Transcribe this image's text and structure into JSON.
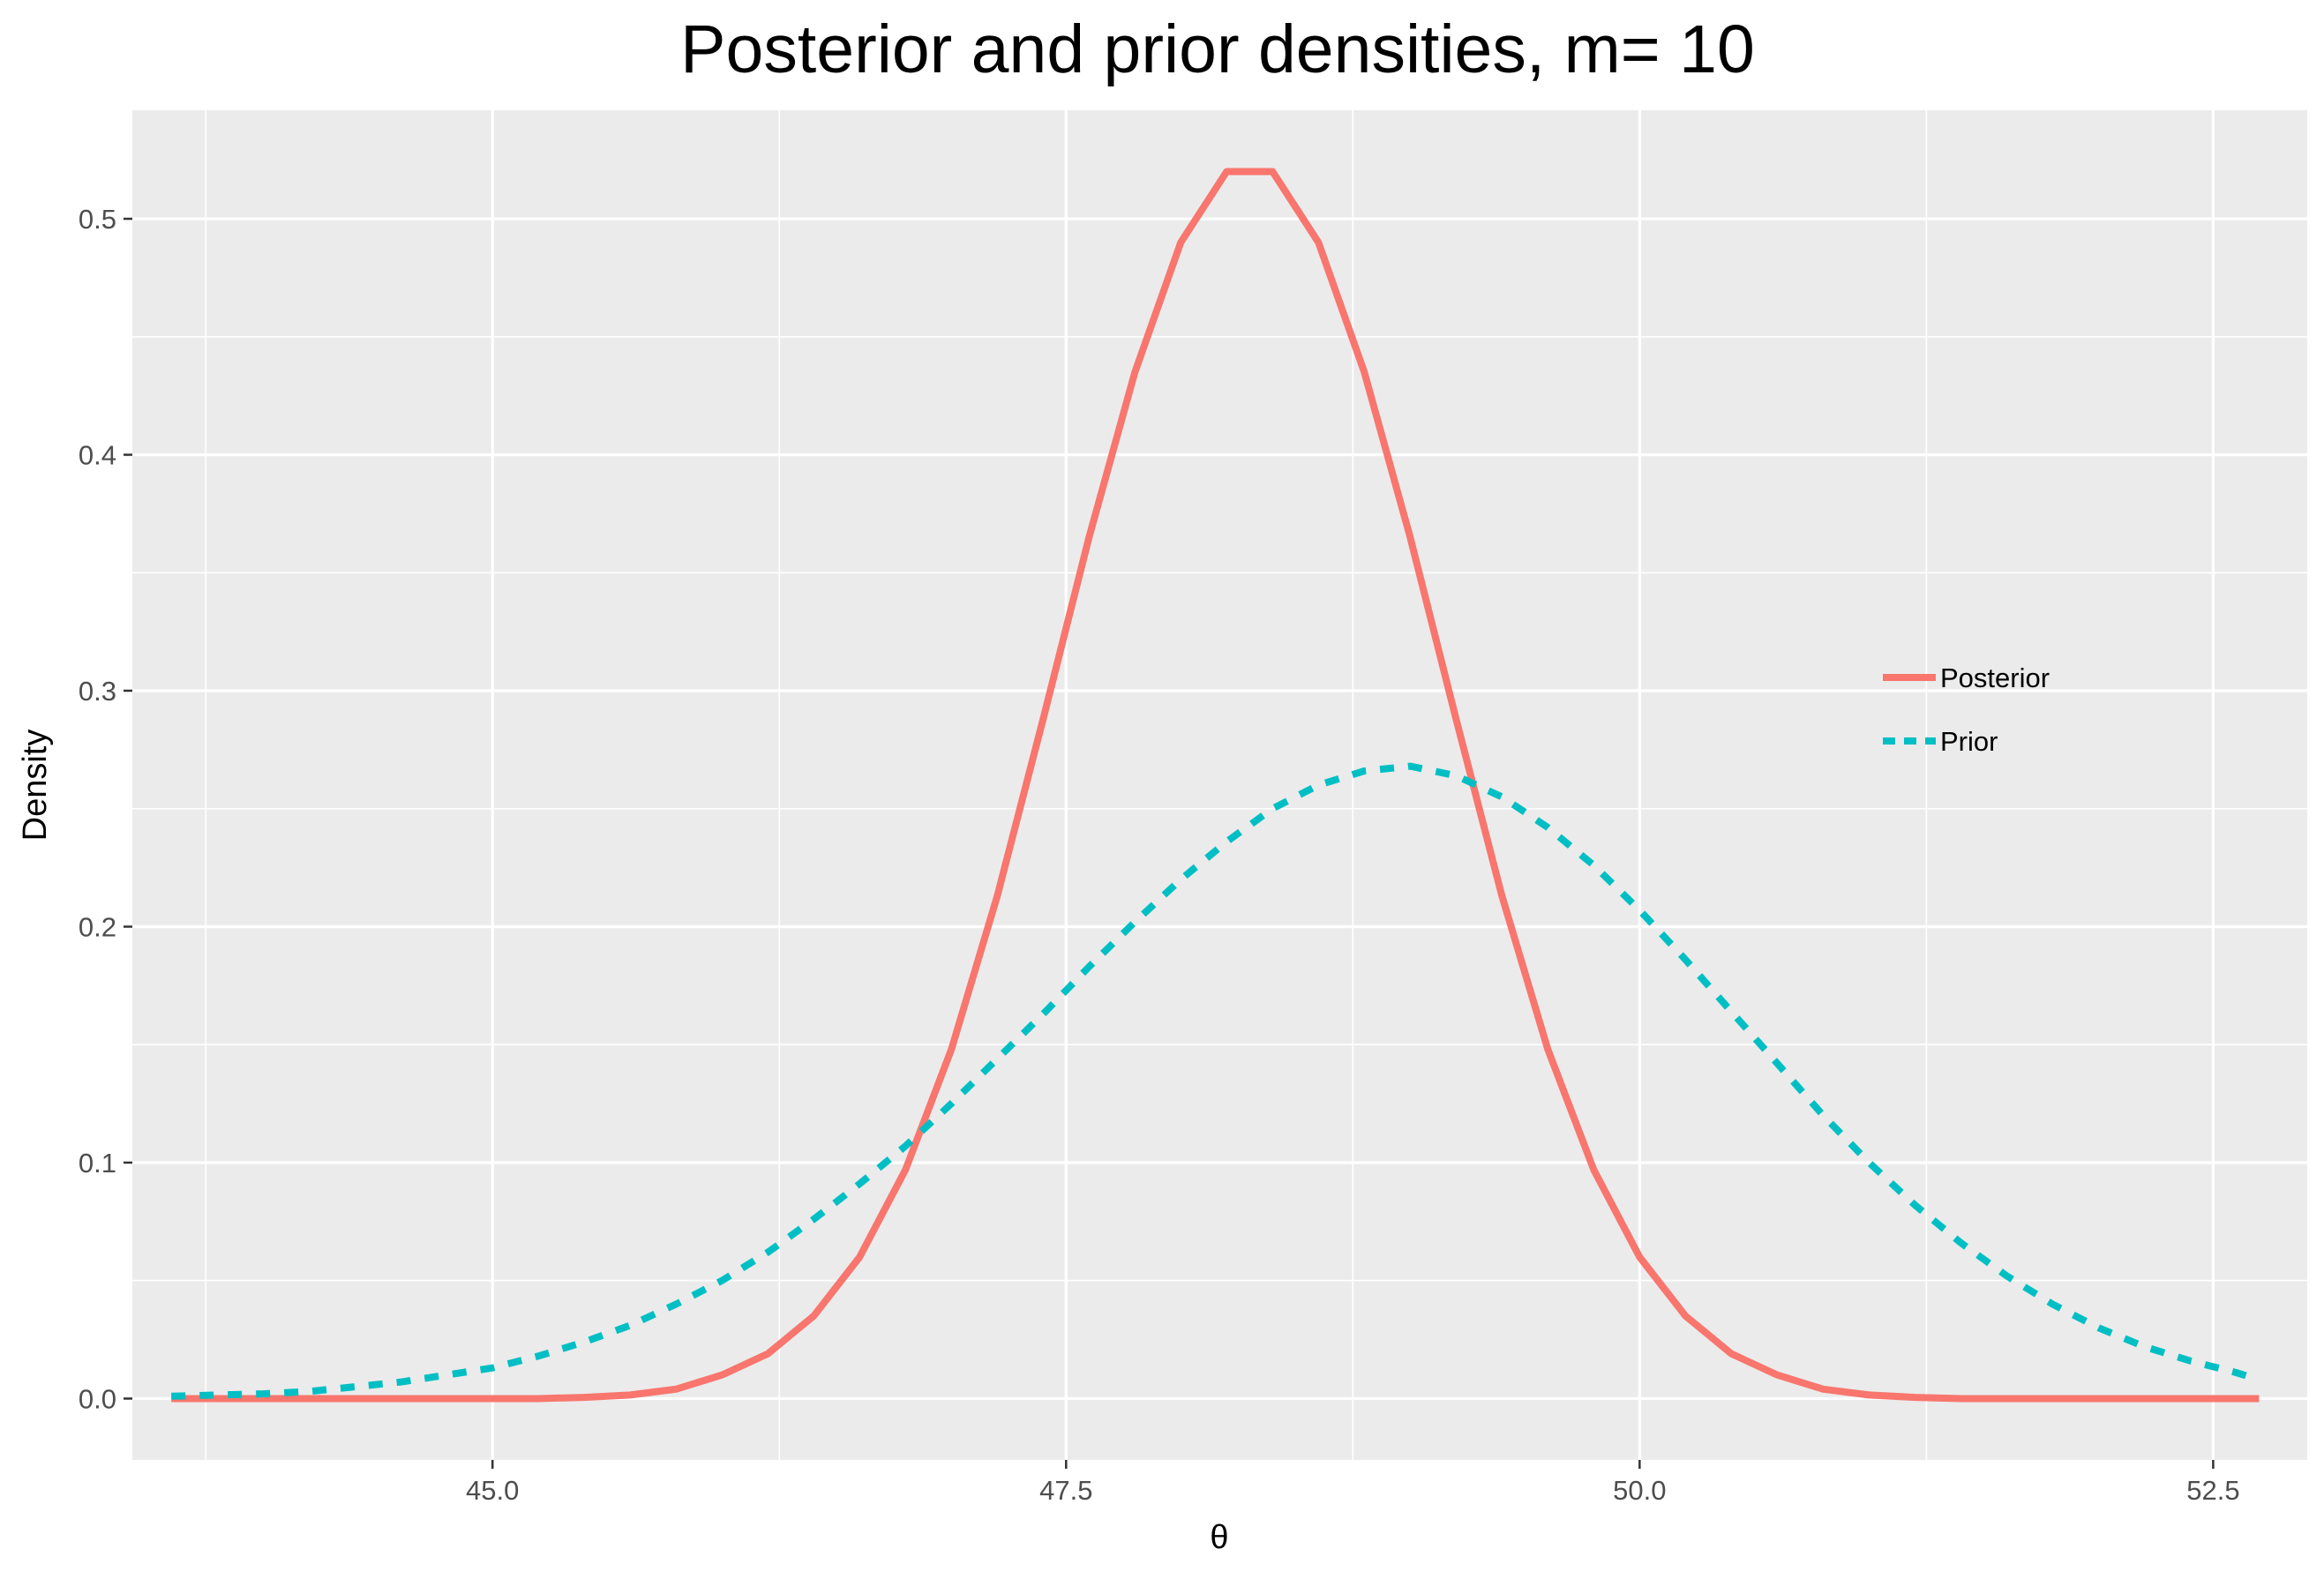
{
  "chart_data": {
    "type": "line",
    "title": "Posterior and prior densities, m= 10",
    "xlabel": "θ",
    "ylabel": "Density",
    "xlim": [
      43.43,
      52.91
    ],
    "ylim": [
      -0.026,
      0.546
    ],
    "x_ticks": [
      45.0,
      47.5,
      50.0,
      52.5
    ],
    "x_tick_labels": [
      "45.0",
      "47.5",
      "50.0",
      "52.5"
    ],
    "x_minor_ticks": [
      43.75,
      46.25,
      48.75,
      51.25
    ],
    "y_ticks": [
      0.0,
      0.1,
      0.2,
      0.3,
      0.4,
      0.5
    ],
    "y_tick_labels": [
      "0.0",
      "0.1",
      "0.2",
      "0.3",
      "0.4",
      "0.5"
    ],
    "y_minor_ticks": [
      0.05,
      0.15,
      0.25,
      0.35,
      0.45
    ],
    "grid": true,
    "legend_position": "right",
    "panel_background": "#ebebeb",
    "grid_color": "#ffffff",
    "series": [
      {
        "name": "Posterior",
        "color": "#f8766d",
        "linestyle": "solid",
        "x": [
          43.6,
          43.8,
          44.0,
          44.2,
          44.4,
          44.6,
          44.8,
          45.0,
          45.2,
          45.4,
          45.6,
          45.8,
          46.0,
          46.2,
          46.4,
          46.6,
          46.8,
          47.0,
          47.2,
          47.4,
          47.6,
          47.8,
          48.0,
          48.2,
          48.4,
          48.6,
          48.8,
          49.0,
          49.2,
          49.4,
          49.6,
          49.8,
          50.0,
          50.2,
          50.4,
          50.6,
          50.8,
          51.0,
          51.2,
          51.4,
          51.6,
          51.8,
          52.0,
          52.2,
          52.4,
          52.6,
          52.7
        ],
        "y": [
          0.0,
          0.0,
          0.0,
          0.0,
          0.0,
          0.0,
          0.0,
          0.0,
          0.0,
          0.0005,
          0.0015,
          0.004,
          0.01,
          0.019,
          0.035,
          0.06,
          0.097,
          0.148,
          0.213,
          0.288,
          0.365,
          0.435,
          0.49,
          0.52,
          0.52,
          0.49,
          0.435,
          0.365,
          0.288,
          0.213,
          0.148,
          0.097,
          0.06,
          0.035,
          0.019,
          0.01,
          0.004,
          0.0015,
          0.0005,
          0.0,
          0.0,
          0.0,
          0.0,
          0.0,
          0.0,
          0.0,
          0.0
        ]
      },
      {
        "name": "Prior",
        "color": "#00bfc4",
        "linestyle": "dashed",
        "x": [
          43.6,
          43.8,
          44.0,
          44.2,
          44.4,
          44.6,
          44.8,
          45.0,
          45.2,
          45.4,
          45.6,
          45.8,
          46.0,
          46.2,
          46.4,
          46.6,
          46.8,
          47.0,
          47.2,
          47.4,
          47.6,
          47.8,
          48.0,
          48.2,
          48.4,
          48.6,
          48.8,
          49.0,
          49.2,
          49.4,
          49.6,
          49.8,
          50.0,
          50.2,
          50.4,
          50.6,
          50.8,
          51.0,
          51.2,
          51.4,
          51.6,
          51.8,
          52.0,
          52.2,
          52.4,
          52.6,
          52.7
        ],
        "y": [
          0.001,
          0.0015,
          0.002,
          0.003,
          0.005,
          0.007,
          0.01,
          0.013,
          0.018,
          0.024,
          0.031,
          0.04,
          0.05,
          0.062,
          0.076,
          0.091,
          0.107,
          0.125,
          0.144,
          0.163,
          0.183,
          0.202,
          0.22,
          0.236,
          0.25,
          0.26,
          0.266,
          0.268,
          0.264,
          0.255,
          0.242,
          0.226,
          0.207,
          0.186,
          0.164,
          0.142,
          0.12,
          0.1,
          0.082,
          0.066,
          0.052,
          0.04,
          0.03,
          0.022,
          0.016,
          0.011,
          0.008
        ]
      }
    ]
  }
}
